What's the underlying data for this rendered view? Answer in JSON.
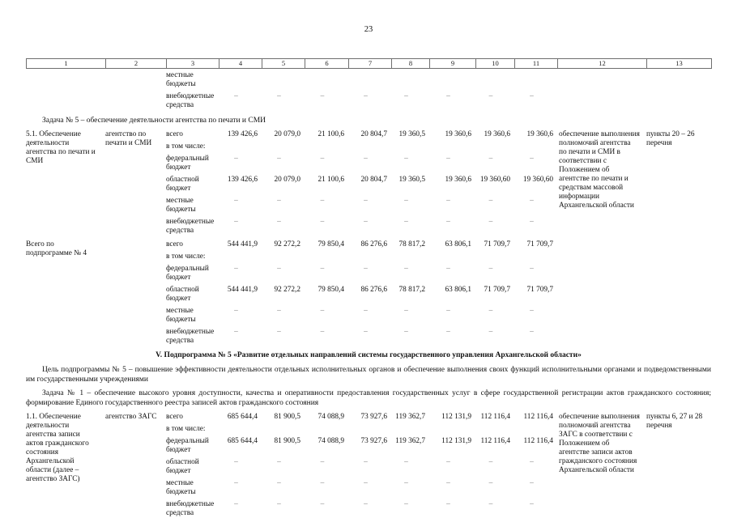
{
  "page": {
    "number": "23"
  },
  "table": {
    "header_columns": [
      "1",
      "2",
      "3",
      "4",
      "5",
      "6",
      "7",
      "8",
      "9",
      "10",
      "11",
      "12",
      "13"
    ],
    "sections": [
      {
        "type": "continuation",
        "subrows": [
          {
            "label": "местные бюджеты",
            "values": [
              "",
              "",
              "",
              "",
              "",
              "",
              "",
              ""
            ]
          },
          {
            "label": "внебюджетные средства",
            "values": [
              "–",
              "–",
              "–",
              "–",
              "–",
              "–",
              "–",
              "–"
            ]
          }
        ]
      },
      {
        "type": "task",
        "text": "Задача № 5 – обеспечение деятельности агентства по печати и СМИ"
      },
      {
        "type": "program",
        "col1": "5.1. Обеспечение деятельности агентства по печати и СМИ",
        "col2": "агентство по печати и СМИ",
        "subrows": [
          {
            "label": "всего",
            "values": [
              "139 426,6",
              "20 079,0",
              "21 100,6",
              "20 804,7",
              "19 360,5",
              "19 360,6",
              "19 360,6",
              "19 360,6"
            ]
          },
          {
            "label": "в том числе:",
            "values": [
              "",
              "",
              "",
              "",
              "",
              "",
              "",
              ""
            ]
          },
          {
            "label": "федеральный бюджет",
            "values": [
              "–",
              "–",
              "–",
              "–",
              "–",
              "–",
              "–",
              "–"
            ]
          },
          {
            "label": "областной бюджет",
            "values": [
              "139 426,6",
              "20 079,0",
              "21 100,6",
              "20 804,7",
              "19 360,5",
              "19 360,6",
              "19 360,60",
              "19 360,60"
            ]
          },
          {
            "label": "местные бюджеты",
            "values": [
              "–",
              "–",
              "–",
              "–",
              "–",
              "–",
              "–",
              "–"
            ]
          },
          {
            "label": "внебюджетные средства",
            "values": [
              "–",
              "–",
              "–",
              "–",
              "–",
              "–",
              "–",
              "–"
            ]
          }
        ],
        "col12": "обеспечение выполнения полномочий агентства по печати и СМИ в соответствии с Положением об агентстве по печати и средствам массовой информации Архангельской области",
        "col13": "пункты 20 – 26 перечня"
      },
      {
        "type": "program",
        "col1": "Всего по подпрограмме № 4",
        "col2": "",
        "subrows": [
          {
            "label": "всего",
            "values": [
              "544 441,9",
              "92 272,2",
              "79 850,4",
              "86 276,6",
              "78 817,2",
              "63 806,1",
              "71 709,7",
              "71 709,7"
            ]
          },
          {
            "label": "в том числе:",
            "values": [
              "",
              "",
              "",
              "",
              "",
              "",
              "",
              ""
            ]
          },
          {
            "label": "федеральный бюджет",
            "values": [
              "–",
              "–",
              "–",
              "–",
              "–",
              "–",
              "–",
              "–"
            ]
          },
          {
            "label": "областной бюджет",
            "values": [
              "544 441,9",
              "92 272,2",
              "79 850,4",
              "86 276,6",
              "78 817,2",
              "63 806,1",
              "71 709,7",
              "71 709,7"
            ]
          },
          {
            "label": "местные бюджеты",
            "values": [
              "–",
              "–",
              "–",
              "–",
              "–",
              "–",
              "–",
              "–"
            ]
          },
          {
            "label": "внебюджетные средства",
            "values": [
              "–",
              "–",
              "–",
              "–",
              "–",
              "–",
              "–",
              "–"
            ]
          }
        ],
        "col12": "",
        "col13": ""
      },
      {
        "type": "section-header",
        "text": "V. Подпрограмма № 5 «Развитие отдельных направлений системы государственного управления Архангельской области»"
      },
      {
        "type": "paragraph",
        "text": "Цель подпрограммы № 5 – повышение эффективности деятельности отдельных исполнительных органов и обеспечение выполнения своих функций исполнительными органами и подведомственными им государственными учреждениями"
      },
      {
        "type": "paragraph",
        "text": "Задача № 1 – обеспечение высокого уровня доступности, качества и оперативности предоставления государственных услуг в сфере государственной регистрации актов гражданского состояния; формирование Единого государственного реестра записей актов гражданского состояния"
      },
      {
        "type": "program",
        "col1": "1.1. Обеспечение деятельности агентства записи актов гражданского состояния Архангельской области (далее – агентство ЗАГС)",
        "col2": "агентство ЗАГС",
        "subrows": [
          {
            "label": "всего",
            "values": [
              "685 644,4",
              "81 900,5",
              "74 088,9",
              "73 927,6",
              "119 362,7",
              "112 131,9",
              "112 116,4",
              "112 116,4"
            ]
          },
          {
            "label": "в том числе:",
            "values": [
              "",
              "",
              "",
              "",
              "",
              "",
              "",
              ""
            ]
          },
          {
            "label": "федеральный бюджет",
            "values": [
              "685 644,4",
              "81 900,5",
              "74 088,9",
              "73 927,6",
              "119 362,7",
              "112 131,9",
              "112 116,4",
              "112 116,4"
            ]
          },
          {
            "label": "областной бюджет",
            "values": [
              "–",
              "–",
              "–",
              "–",
              "–",
              "–",
              "–",
              "–"
            ]
          },
          {
            "label": "местные бюджеты",
            "values": [
              "–",
              "–",
              "–",
              "–",
              "–",
              "–",
              "–",
              "–"
            ]
          },
          {
            "label": "внебюджетные средства",
            "values": [
              "–",
              "–",
              "–",
              "–",
              "–",
              "–",
              "–",
              "–"
            ]
          }
        ],
        "col12": "обеспечение выполнения полномочий агентства ЗАГС в соответствии с Положением об агентстве записи актов гражданского состояния Архангельской области",
        "col13": "пункты 6, 27 и 28 перечня"
      }
    ]
  }
}
